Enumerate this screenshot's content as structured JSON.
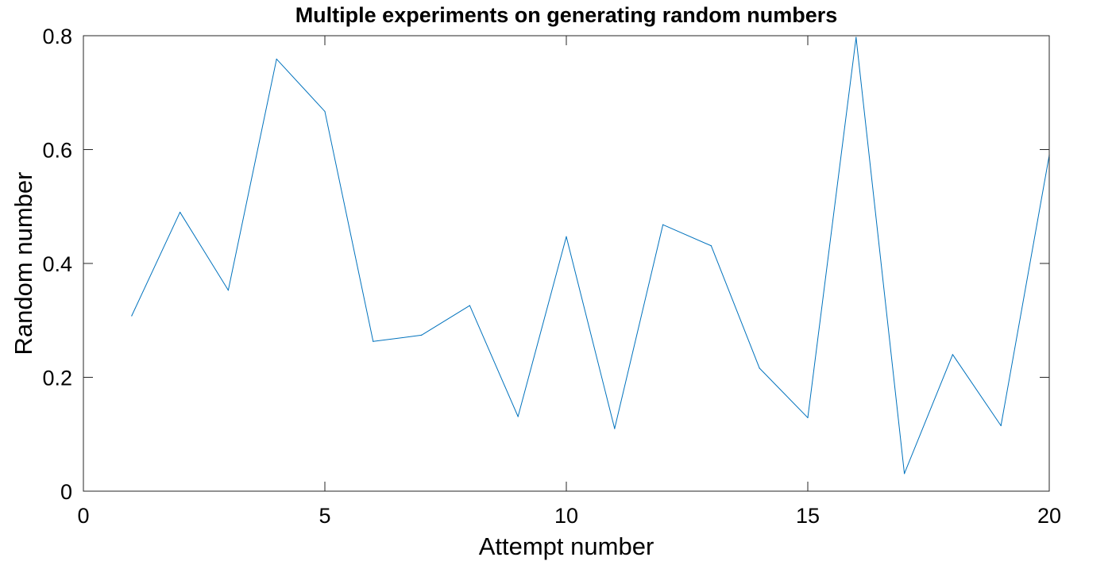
{
  "chart_data": {
    "type": "line",
    "title": "Multiple experiments on generating random numbers",
    "xlabel": "Attempt number",
    "ylabel": "Random number",
    "xlim": [
      0,
      20
    ],
    "ylim": [
      0,
      0.8
    ],
    "x_ticks": [
      0,
      5,
      10,
      15,
      20
    ],
    "x_tick_labels": [
      "0",
      "5",
      "10",
      "15",
      "20"
    ],
    "y_ticks": [
      0,
      0.2,
      0.4,
      0.6,
      0.8
    ],
    "y_tick_labels": [
      "0",
      "0.2",
      "0.4",
      "0.6",
      "0.8"
    ],
    "grid": false,
    "series": [
      {
        "color": "#0072bd",
        "x": [
          1,
          2,
          3,
          4,
          5,
          6,
          7,
          8,
          9,
          10,
          11,
          12,
          13,
          14,
          15,
          16,
          17,
          18,
          19,
          20
        ],
        "values": [
          0.308,
          0.49,
          0.353,
          0.759,
          0.667,
          0.263,
          0.274,
          0.326,
          0.131,
          0.447,
          0.11,
          0.468,
          0.431,
          0.216,
          0.129,
          0.797,
          0.031,
          0.24,
          0.115,
          0.59
        ]
      }
    ]
  }
}
